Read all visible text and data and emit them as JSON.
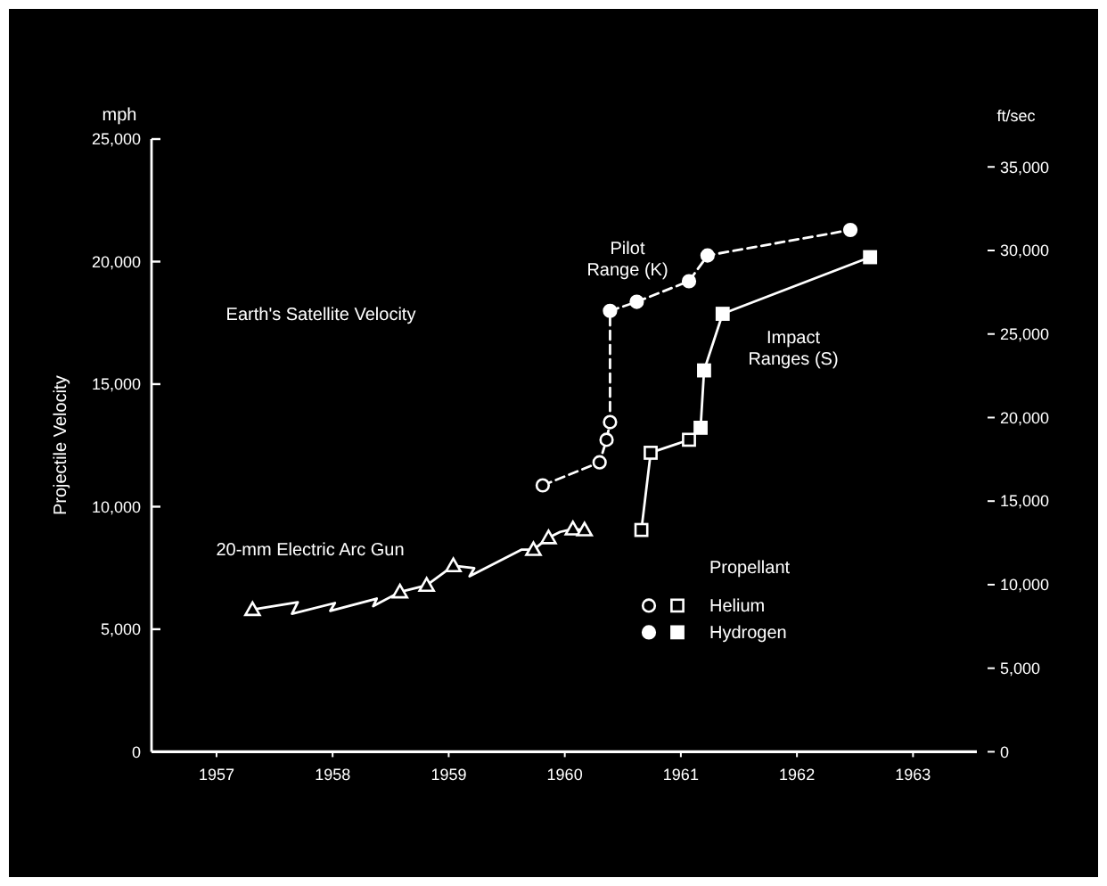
{
  "chart_data": {
    "type": "line",
    "ylabel": "Projectile Velocity",
    "y2label": "ft/sec",
    "legend_title": "Propellant",
    "legend": "bottom right",
    "grid": false,
    "xlim": [
      1956.44,
      1963.55
    ],
    "xticks": [
      1957,
      1958,
      1959,
      1960,
      1961,
      1962,
      1963
    ],
    "ylim": [
      0,
      25000
    ],
    "yticks": [
      0,
      {
        "value": 5000,
        "label": "5,000"
      },
      {
        "value": 10000,
        "label": "10,000"
      },
      {
        "value": 15000,
        "label": "15,000"
      },
      {
        "value": 20000,
        "label": "20,000"
      },
      {
        "value": 25000,
        "label": "25,000"
      }
    ],
    "y2lim": [
      0,
      36667
    ],
    "y2ticks": [
      0,
      {
        "value": 5000,
        "label": "5,000"
      },
      {
        "value": 10000,
        "label": "10,000"
      },
      {
        "value": 15000,
        "label": "15,000"
      },
      {
        "value": 20000,
        "label": "20,000"
      },
      {
        "value": 25000,
        "label": "25,000"
      },
      {
        "value": 30000,
        "label": "30,000"
      },
      {
        "value": 35000,
        "label": "35,000"
      }
    ],
    "annotations": [
      "mph",
      "Earth's Satellite Velocity",
      "20-mm Electric Arc Gun",
      "Pilot\nRange (K)",
      "Impact\nRanges (S)"
    ],
    "series": [
      {
        "color": "#ffffff",
        "line_style": "solid",
        "marker": "none",
        "x": [
          1957.31,
          1957.7,
          1957.65,
          1958.02,
          1957.98,
          1958.38,
          1958.35,
          1958.58,
          1958.81,
          1959.04,
          1959.22,
          1959.18,
          1959.63,
          1959.73,
          1959.86,
          1959.96,
          1960.07,
          1960.17
        ],
        "values": [
          5800,
          6100,
          5630,
          6070,
          5750,
          6250,
          5940,
          6520,
          6790,
          7590,
          7490,
          7160,
          8250,
          8250,
          8730,
          8970,
          9090,
          9050
        ]
      },
      {
        "type": "scatter",
        "color": "#000000",
        "marker": "triangle",
        "x": [
          1957.31,
          1958.58,
          1958.81,
          1959.04,
          1959.73,
          1959.86,
          1960.07,
          1960.17
        ],
        "values": [
          5800,
          6520,
          6790,
          7590,
          8250,
          8730,
          9090,
          9050
        ]
      },
      {
        "color": "#ffffff",
        "line_style": "dashed",
        "marker": "none",
        "x": [
          1959.81,
          1960.3,
          1960.36,
          1960.39,
          1960.39,
          1960.62,
          1961.07,
          1961.23,
          1962.46
        ],
        "values": [
          10870,
          11810,
          12730,
          13450,
          17990,
          18360,
          19200,
          20250,
          21290
        ]
      },
      {
        "type": "scatter",
        "color": "#000000",
        "marker": "circle",
        "x": [
          1959.81,
          1960.3,
          1960.36,
          1960.39
        ],
        "values": [
          10870,
          11810,
          12730,
          13450
        ]
      },
      {
        "type": "scatter",
        "color": "#ffffff",
        "marker": "circle",
        "x": [
          1960.39,
          1960.62,
          1961.07,
          1961.23,
          1962.46
        ],
        "values": [
          17990,
          18360,
          19200,
          20250,
          21290
        ]
      },
      {
        "color": "#ffffff",
        "line_style": "solid",
        "marker": "none",
        "x": [
          1960.66,
          1960.74,
          1961.07,
          1961.17,
          1961.2,
          1961.36,
          1962.63
        ],
        "values": [
          9050,
          12200,
          12730,
          13220,
          15560,
          17870,
          20180
        ]
      },
      {
        "type": "scatter",
        "name": "Helium",
        "color": "#000000",
        "marker": "square",
        "x": [
          1960.66,
          1960.74,
          1961.07
        ],
        "values": [
          9050,
          12200,
          12730
        ]
      },
      {
        "type": "scatter",
        "name": "Hydrogen",
        "color": "#ffffff",
        "marker": "square",
        "x": [
          1961.17,
          1961.2,
          1961.36,
          1962.63
        ],
        "values": [
          13220,
          15560,
          17870,
          20180
        ]
      }
    ]
  }
}
